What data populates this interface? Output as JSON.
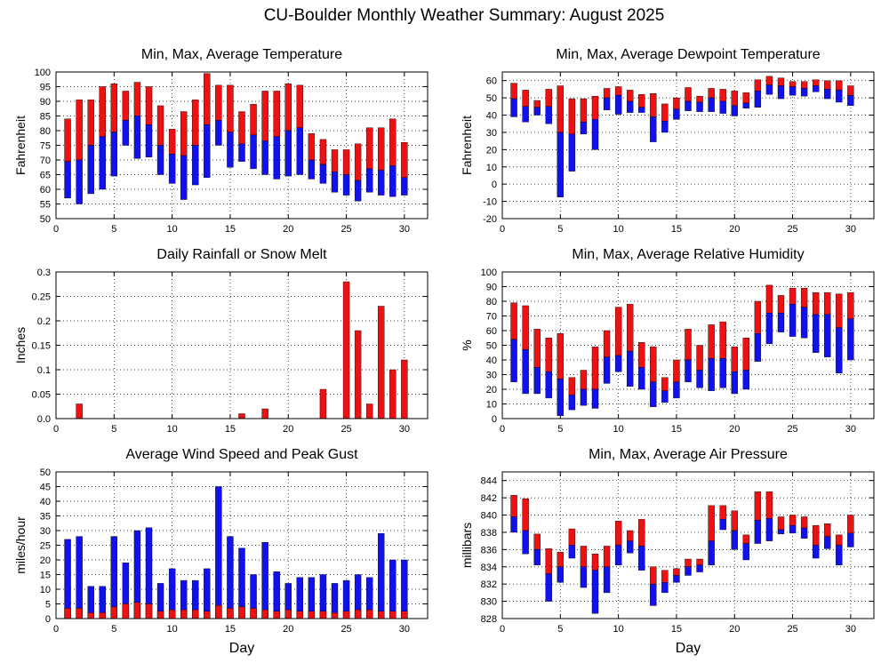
{
  "figure_title": "CU-Boulder Monthly Weather Summary: August 2025",
  "colors": {
    "red": "#ee1111",
    "blue": "#1111ee"
  },
  "chart_data": [
    {
      "id": "temp",
      "type": "bar",
      "title": "Min, Max, Average Temperature",
      "ylabel": "Fahrenheit",
      "xlabel": "",
      "ylim": [
        50,
        100
      ],
      "yticks": [
        50,
        55,
        60,
        65,
        70,
        75,
        80,
        85,
        90,
        95,
        100
      ],
      "xlim": [
        0,
        32
      ],
      "xticks": [
        0,
        5,
        10,
        15,
        20,
        25,
        30
      ],
      "grid": true,
      "style": "minavgmax",
      "days": [
        1,
        2,
        3,
        4,
        5,
        6,
        7,
        8,
        9,
        10,
        11,
        12,
        13,
        14,
        15,
        16,
        17,
        18,
        19,
        20,
        21,
        22,
        23,
        24,
        25,
        26,
        27,
        28,
        29,
        30
      ],
      "series": [
        {
          "name": "Min",
          "values": [
            57,
            55,
            58.5,
            60,
            64.5,
            75,
            70.5,
            71,
            65,
            62,
            56.5,
            61.5,
            64,
            75,
            67.5,
            69.5,
            67,
            65,
            63.5,
            64.5,
            65,
            63.5,
            62,
            59,
            58,
            56,
            59,
            58,
            57.5,
            58
          ]
        },
        {
          "name": "Average",
          "values": [
            69.5,
            70,
            75,
            78,
            79.5,
            83.5,
            85,
            82,
            75,
            72,
            71.5,
            75,
            82,
            83.5,
            79.5,
            75.5,
            78.5,
            76.5,
            78,
            80,
            81,
            70,
            68.5,
            66,
            65,
            63,
            67,
            66.5,
            68,
            64
          ]
        },
        {
          "name": "Max",
          "values": [
            84,
            90.5,
            90.5,
            95,
            96,
            93.5,
            96.5,
            95,
            88.5,
            80.5,
            86.5,
            90.5,
            99.5,
            95.5,
            95.5,
            86.5,
            89,
            93.5,
            93.5,
            96,
            95.5,
            79,
            77,
            73.5,
            73.5,
            75.5,
            81,
            81,
            84,
            76
          ]
        }
      ]
    },
    {
      "id": "dew",
      "type": "bar",
      "title": "Min, Max, Average Dewpoint Temperature",
      "ylabel": "Fahrenheit",
      "xlabel": "",
      "ylim": [
        -20,
        65
      ],
      "yticks": [
        -20,
        -10,
        0,
        10,
        20,
        30,
        40,
        50,
        60
      ],
      "xlim": [
        0,
        32
      ],
      "xticks": [
        0,
        5,
        10,
        15,
        20,
        25,
        30
      ],
      "grid": true,
      "style": "minavgmax",
      "days": [
        1,
        2,
        3,
        4,
        5,
        6,
        7,
        8,
        9,
        10,
        11,
        12,
        13,
        14,
        15,
        16,
        17,
        18,
        19,
        20,
        21,
        22,
        23,
        24,
        25,
        26,
        27,
        28,
        29,
        30
      ],
      "series": [
        {
          "name": "Min",
          "values": [
            39,
            36,
            40,
            35,
            -7.5,
            7.5,
            29,
            20,
            43,
            40.5,
            41.5,
            41.5,
            24.5,
            30,
            37.5,
            42.5,
            42,
            42,
            41,
            39.5,
            44,
            44.5,
            52,
            49.5,
            51.5,
            51,
            53.5,
            49.5,
            47.5,
            45.5
          ]
        },
        {
          "name": "Average",
          "values": [
            49.5,
            45,
            44.5,
            45,
            30,
            29,
            36,
            37.5,
            50,
            51.5,
            48,
            44.5,
            39,
            36.5,
            43.5,
            48,
            47.5,
            50,
            48,
            45.5,
            47,
            54,
            57.5,
            57,
            56.5,
            55.5,
            57,
            55,
            54.5,
            51.5
          ]
        },
        {
          "name": "Max",
          "values": [
            58.5,
            54.5,
            48.5,
            55,
            57,
            49.5,
            49.5,
            51,
            55.5,
            56.5,
            54.5,
            52,
            52.5,
            46.5,
            50,
            56,
            51,
            55.5,
            55,
            54,
            53,
            60.5,
            62.5,
            61.5,
            59.5,
            59.5,
            60.5,
            60,
            60,
            57
          ]
        }
      ]
    },
    {
      "id": "rain",
      "type": "bar",
      "title": "Daily Rainfall or Snow Melt",
      "ylabel": "Inches",
      "xlabel": "",
      "ylim": [
        0,
        0.3
      ],
      "yticks": [
        0,
        0.05,
        0.1,
        0.15,
        0.2,
        0.25,
        0.3
      ],
      "ytick_labels": [
        "0.0",
        "0.05",
        "0.1",
        "0.15",
        "0.2",
        "0.25",
        "0.3"
      ],
      "xlim": [
        0,
        32
      ],
      "xticks": [
        0,
        5,
        10,
        15,
        20,
        25,
        30
      ],
      "grid": true,
      "style": "single",
      "days": [
        2,
        16,
        18,
        23,
        25,
        26,
        27,
        28,
        29,
        30
      ],
      "series": [
        {
          "name": "Rain",
          "values": [
            0.03,
            0.01,
            0.02,
            0.06,
            0.28,
            0.18,
            0.03,
            0.23,
            0.1,
            0.12
          ]
        }
      ]
    },
    {
      "id": "rh",
      "type": "bar",
      "title": "Min, Max, Average Relative Humidity",
      "ylabel": "%",
      "xlabel": "",
      "ylim": [
        0,
        100
      ],
      "yticks": [
        0,
        10,
        20,
        30,
        40,
        50,
        60,
        70,
        80,
        90,
        100
      ],
      "xlim": [
        0,
        32
      ],
      "xticks": [
        0,
        5,
        10,
        15,
        20,
        25,
        30
      ],
      "grid": true,
      "style": "minavgmax",
      "days": [
        1,
        2,
        3,
        4,
        5,
        6,
        7,
        8,
        9,
        10,
        11,
        12,
        13,
        14,
        15,
        16,
        17,
        18,
        19,
        20,
        21,
        22,
        23,
        24,
        25,
        26,
        27,
        28,
        29,
        30
      ],
      "series": [
        {
          "name": "Min",
          "values": [
            25,
            17,
            17,
            14,
            2,
            6,
            9,
            7,
            24,
            32,
            22,
            20,
            8,
            11,
            14,
            25,
            21,
            19,
            21,
            17,
            20,
            39,
            51,
            59,
            56,
            55,
            45,
            42,
            31,
            40
          ]
        },
        {
          "name": "Average",
          "values": [
            54,
            47,
            35,
            32,
            27,
            16,
            20,
            20,
            42,
            43,
            46,
            35,
            25,
            19,
            25,
            40,
            33,
            41,
            41,
            32,
            33,
            58,
            72,
            72,
            78,
            76,
            71,
            71,
            62,
            68
          ]
        },
        {
          "name": "Max",
          "values": [
            79,
            77,
            61,
            55,
            58,
            28,
            33,
            49,
            60,
            76,
            78,
            52,
            49,
            28,
            40,
            61,
            50,
            64,
            66,
            49,
            55,
            80,
            91,
            84,
            89,
            89,
            86,
            86,
            85,
            86
          ]
        }
      ]
    },
    {
      "id": "wind",
      "type": "bar",
      "title": "Average Wind Speed and Peak Gust",
      "ylabel": "miles/hour",
      "xlabel": "Day",
      "ylim": [
        0,
        50
      ],
      "yticks": [
        0,
        5,
        10,
        15,
        20,
        25,
        30,
        35,
        40,
        45,
        50
      ],
      "xlim": [
        0,
        32
      ],
      "xticks": [
        0,
        5,
        10,
        15,
        20,
        25,
        30
      ],
      "grid": true,
      "style": "avggust",
      "days": [
        1,
        2,
        3,
        4,
        5,
        6,
        7,
        8,
        9,
        10,
        11,
        12,
        13,
        14,
        15,
        16,
        17,
        18,
        19,
        20,
        21,
        22,
        23,
        24,
        25,
        26,
        27,
        28,
        29,
        30
      ],
      "series": [
        {
          "name": "Average Wind Speed",
          "values": [
            3.5,
            3.5,
            2,
            2,
            4,
            5,
            5.5,
            5,
            2.5,
            3,
            3,
            3,
            2.5,
            4.5,
            3.5,
            4,
            3.5,
            3,
            2.5,
            3,
            2.5,
            2.5,
            2.5,
            2,
            2.5,
            3,
            3,
            2.5,
            2.5,
            2.5
          ]
        },
        {
          "name": "Peak Gust",
          "values": [
            27,
            28,
            11,
            11,
            28,
            19,
            30,
            31,
            12,
            17,
            13,
            13,
            17,
            45,
            28,
            24,
            15,
            26,
            16,
            12,
            14,
            14,
            15,
            12,
            13,
            15,
            14,
            29,
            20,
            20
          ]
        }
      ]
    },
    {
      "id": "pres",
      "type": "bar",
      "title": "Min, Max, Average Air Pressure",
      "ylabel": "millibars",
      "xlabel": "Day",
      "ylim": [
        828,
        845
      ],
      "yticks": [
        828,
        830,
        832,
        834,
        836,
        838,
        840,
        842,
        844
      ],
      "xlim": [
        0,
        32
      ],
      "xticks": [
        0,
        5,
        10,
        15,
        20,
        25,
        30
      ],
      "grid": true,
      "style": "minavgmax",
      "days": [
        1,
        2,
        3,
        4,
        5,
        6,
        7,
        8,
        9,
        10,
        11,
        12,
        13,
        14,
        15,
        16,
        17,
        18,
        19,
        20,
        21,
        22,
        23,
        24,
        25,
        26,
        27,
        28,
        29,
        30
      ],
      "series": [
        {
          "name": "Min",
          "values": [
            838,
            835.5,
            834.2,
            830,
            832.2,
            835,
            831.6,
            828.6,
            831,
            834.2,
            835.6,
            833.6,
            829.5,
            831,
            832.2,
            833,
            833.4,
            834.2,
            838.3,
            836,
            834.8,
            836.7,
            837,
            837.8,
            837.9,
            837.3,
            835,
            836.1,
            834.2,
            836.3
          ]
        },
        {
          "name": "Average",
          "values": [
            839.8,
            838.2,
            836,
            833.2,
            834,
            836.5,
            834,
            833.6,
            834,
            836.5,
            837,
            836.4,
            832,
            832.2,
            833,
            834,
            834.2,
            837,
            839.5,
            838.2,
            836.7,
            839.4,
            839.6,
            838.3,
            838.8,
            838.5,
            836.5,
            837.5,
            836.5,
            837.9
          ]
        },
        {
          "name": "Max",
          "values": [
            842.3,
            841.9,
            837.8,
            836.1,
            835.7,
            838.4,
            836.4,
            835.5,
            836.4,
            839.3,
            838.2,
            839.5,
            834,
            833.6,
            833.8,
            834.9,
            834.9,
            841.1,
            841.1,
            840.5,
            837.7,
            842.7,
            842.7,
            839.8,
            840,
            839.8,
            838.8,
            839,
            837.7,
            840
          ]
        }
      ]
    }
  ]
}
